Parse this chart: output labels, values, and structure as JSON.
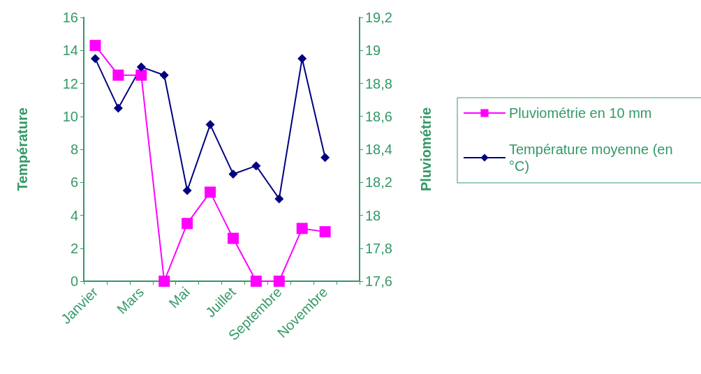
{
  "chart_data": {
    "type": "line",
    "categories": [
      "Janvier",
      null,
      "Mars",
      null,
      "Mai",
      null,
      "Juillet",
      null,
      "Septembre",
      null,
      "Novembre",
      null
    ],
    "ylabel": "Température",
    "y2label": "Pluviométrie",
    "ylim": [
      0,
      16
    ],
    "yticks": [
      0,
      2,
      4,
      6,
      8,
      10,
      12,
      14,
      16
    ],
    "y2lim": [
      17.6,
      19.2
    ],
    "y2ticks": [
      {
        "value": 17.6,
        "label": "17,6"
      },
      {
        "value": 17.8,
        "label": "17,8"
      },
      18,
      {
        "value": 18.2,
        "label": "18,2"
      },
      {
        "value": 18.4,
        "label": "18,4"
      },
      {
        "value": 18.6,
        "label": "18,6"
      },
      {
        "value": 18.8,
        "label": "18,8"
      },
      19,
      {
        "value": 19.2,
        "label": "19,2"
      }
    ],
    "series": [
      {
        "name": "Pluviométrie en 10 mm",
        "color": "#ff00ff",
        "marker": "square",
        "values": [
          14.3,
          12.5,
          12.5,
          0,
          3.5,
          5.4,
          2.6,
          0,
          0,
          3.2,
          3.0,
          null
        ]
      },
      {
        "name": "Température moyenne (en °C)",
        "color": "#000080",
        "marker": "diamond",
        "axis": "y2",
        "values": [
          18.95,
          18.65,
          18.9,
          18.85,
          18.15,
          18.55,
          18.25,
          18.3,
          18.1,
          18.95,
          18.35,
          null
        ]
      }
    ],
    "grid": false,
    "legend": "right",
    "line_style": "solid"
  }
}
